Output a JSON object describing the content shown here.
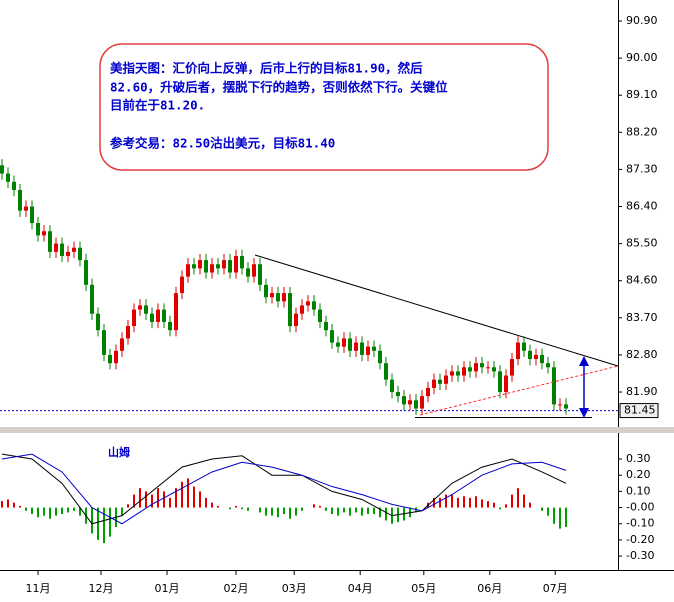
{
  "chart_data": [
    {
      "type": "candlestick",
      "annotation": [
        "美指天图：汇价向上反弹，后市上行的目标81.90，然后",
        "82.60，升破后者，摆脱下行的趋势，否则依然下行。关键位",
        "目前在于81.20.",
        "参考交易：82.50沽出美元，目标81.40"
      ],
      "open": [
        87.4,
        87.2,
        87.0,
        86.8,
        86.3,
        86.4,
        86.0,
        85.7,
        85.8,
        85.3,
        85.5,
        85.2,
        85.3,
        85.4,
        85.1,
        84.5,
        83.8,
        83.4,
        82.8,
        82.6,
        82.9,
        83.2,
        83.5,
        83.9,
        84.0,
        83.8,
        83.6,
        83.9,
        83.6,
        83.4,
        84.3,
        84.7,
        85.0,
        84.9,
        85.1,
        84.8,
        85.0,
        84.9,
        85.1,
        84.8,
        85.2,
        84.9,
        84.7,
        85.0,
        84.5,
        84.2,
        84.3,
        84.1,
        84.3,
        83.5,
        83.8,
        84.0,
        84.1,
        83.9,
        83.6,
        83.4,
        83.1,
        83.0,
        83.2,
        82.9,
        83.1,
        82.8,
        83.0,
        82.9,
        82.6,
        82.2,
        81.9,
        81.8,
        81.6,
        81.7,
        81.5,
        81.8,
        82.0,
        82.2,
        82.1,
        82.3,
        82.4,
        82.3,
        82.5,
        82.4,
        82.6,
        82.5,
        82.5,
        82.4,
        81.9,
        82.3,
        82.7,
        83.1,
        82.9,
        82.7,
        82.8,
        82.6,
        82.5,
        81.6,
        81.6
      ],
      "high": [
        87.55,
        87.35,
        87.15,
        86.95,
        86.55,
        86.55,
        86.15,
        85.95,
        85.95,
        85.65,
        85.65,
        85.45,
        85.55,
        85.55,
        85.25,
        84.65,
        83.95,
        83.55,
        82.95,
        83.05,
        83.35,
        83.65,
        84.05,
        84.15,
        84.15,
        83.95,
        84.05,
        84.05,
        83.75,
        84.45,
        84.85,
        85.15,
        85.15,
        85.25,
        85.25,
        85.15,
        85.15,
        85.25,
        85.25,
        85.35,
        85.35,
        85.05,
        85.15,
        85.15,
        84.65,
        84.45,
        84.45,
        84.45,
        84.45,
        83.95,
        84.15,
        84.25,
        84.25,
        84.05,
        83.75,
        83.55,
        83.25,
        83.35,
        83.35,
        83.25,
        83.25,
        83.15,
        83.15,
        83.05,
        82.75,
        82.35,
        82.05,
        81.95,
        81.85,
        81.85,
        81.95,
        82.15,
        82.35,
        82.35,
        82.45,
        82.55,
        82.55,
        82.65,
        82.65,
        82.75,
        82.75,
        82.65,
        82.65,
        82.55,
        82.45,
        82.85,
        83.25,
        83.25,
        83.05,
        82.95,
        82.95,
        82.75,
        82.65,
        81.75,
        81.75
      ],
      "low": [
        87.05,
        86.85,
        86.65,
        86.15,
        86.15,
        85.85,
        85.55,
        85.55,
        85.15,
        85.15,
        85.05,
        85.05,
        85.15,
        84.95,
        84.35,
        83.65,
        83.25,
        82.65,
        82.45,
        82.45,
        82.75,
        83.05,
        83.35,
        83.75,
        83.65,
        83.45,
        83.45,
        83.45,
        83.25,
        83.25,
        84.15,
        84.55,
        84.75,
        84.75,
        84.65,
        84.65,
        84.75,
        84.75,
        84.65,
        84.65,
        84.75,
        84.55,
        84.55,
        84.35,
        84.05,
        84.05,
        83.95,
        83.95,
        83.35,
        83.35,
        83.65,
        83.85,
        83.75,
        83.45,
        83.25,
        82.95,
        82.85,
        82.85,
        82.75,
        82.75,
        82.65,
        82.65,
        82.75,
        82.45,
        82.05,
        81.75,
        81.65,
        81.45,
        81.45,
        81.35,
        81.35,
        81.65,
        81.85,
        81.95,
        81.95,
        82.15,
        82.15,
        82.15,
        82.25,
        82.25,
        82.35,
        82.35,
        82.25,
        81.75,
        81.75,
        82.15,
        82.55,
        82.75,
        82.55,
        82.55,
        82.45,
        82.35,
        81.45,
        81.45,
        81.35
      ],
      "close": [
        87.2,
        87.0,
        86.8,
        86.3,
        86.4,
        86.0,
        85.7,
        85.8,
        85.3,
        85.5,
        85.2,
        85.3,
        85.4,
        85.1,
        84.5,
        83.8,
        83.4,
        82.8,
        82.6,
        82.9,
        83.2,
        83.5,
        83.9,
        84.0,
        83.8,
        83.6,
        83.9,
        83.6,
        83.4,
        84.3,
        84.7,
        85.0,
        84.9,
        85.1,
        84.8,
        85.0,
        84.9,
        85.1,
        84.8,
        85.2,
        84.9,
        84.7,
        85.0,
        84.5,
        84.2,
        84.3,
        84.1,
        84.3,
        83.5,
        83.8,
        84.0,
        84.1,
        83.9,
        83.6,
        83.4,
        83.1,
        83.0,
        83.2,
        82.9,
        83.1,
        82.8,
        83.0,
        82.9,
        82.6,
        82.2,
        81.9,
        81.8,
        81.6,
        81.7,
        81.5,
        81.8,
        82.0,
        82.2,
        82.1,
        82.3,
        82.4,
        82.3,
        82.5,
        82.4,
        82.6,
        82.5,
        82.5,
        82.4,
        81.9,
        82.3,
        82.7,
        83.1,
        82.9,
        82.7,
        82.8,
        82.6,
        82.5,
        81.6,
        81.6,
        81.5
      ],
      "up_color": "#e00000",
      "down_color": "#008000",
      "ylim": [
        81.1,
        91.41
      ],
      "yticks": [
        {
          "value": 90.9,
          "label": "90.90"
        },
        {
          "value": 90.0,
          "label": "90.00"
        },
        {
          "value": 89.1,
          "label": "89.10"
        },
        {
          "value": 88.2,
          "label": "88.20"
        },
        {
          "value": 87.3,
          "label": "87.30"
        },
        {
          "value": 86.4,
          "label": "86.40"
        },
        {
          "value": 85.5,
          "label": "85.50"
        },
        {
          "value": 84.6,
          "label": "84.60"
        },
        {
          "value": 83.7,
          "label": "83.70"
        },
        {
          "value": 82.8,
          "label": "82.80"
        },
        {
          "value": 81.9,
          "label": "81.90"
        }
      ],
      "last_price": {
        "value": 81.45,
        "label": "81.45"
      },
      "x_labels": [
        "11月",
        "12月",
        "01月",
        "02月",
        "03月",
        "04月",
        "05月",
        "06月",
        "07月"
      ]
    },
    {
      "type": "macd",
      "title": "山姆",
      "histogram": [
        0.04,
        0.05,
        0.03,
        0.01,
        -0.02,
        -0.04,
        -0.06,
        -0.05,
        -0.07,
        -0.05,
        -0.04,
        -0.03,
        -0.02,
        -0.05,
        -0.1,
        -0.16,
        -0.2,
        -0.22,
        -0.18,
        -0.12,
        -0.05,
        0.02,
        0.08,
        0.12,
        0.1,
        0.08,
        0.12,
        0.1,
        0.06,
        0.12,
        0.16,
        0.18,
        0.13,
        0.1,
        0.06,
        0.03,
        0.01,
        0.0,
        -0.01,
        0.01,
        -0.01,
        -0.02,
        0.0,
        -0.03,
        -0.05,
        -0.05,
        -0.06,
        -0.04,
        -0.07,
        -0.05,
        -0.02,
        0.0,
        0.02,
        0.01,
        -0.02,
        -0.04,
        -0.05,
        -0.03,
        -0.05,
        -0.03,
        -0.05,
        -0.04,
        -0.04,
        -0.06,
        -0.08,
        -0.1,
        -0.09,
        -0.08,
        -0.06,
        -0.03,
        0.0,
        0.03,
        0.06,
        0.06,
        0.08,
        0.08,
        0.06,
        0.07,
        0.06,
        0.07,
        0.05,
        0.04,
        0.03,
        -0.01,
        0.02,
        0.08,
        0.12,
        0.08,
        0.03,
        0.0,
        -0.02,
        -0.05,
        -0.1,
        -0.13,
        -0.12
      ],
      "x": [
        0,
        5,
        10,
        15,
        20,
        25,
        30,
        35,
        40,
        45,
        50,
        55,
        60,
        65,
        70,
        75,
        80,
        85,
        90,
        94
      ],
      "dif": {
        "color": "#000000",
        "values": [
          0.33,
          0.3,
          0.15,
          -0.1,
          -0.05,
          0.1,
          0.25,
          0.3,
          0.32,
          0.2,
          0.2,
          0.1,
          0.05,
          -0.05,
          -0.02,
          0.15,
          0.25,
          0.3,
          0.22,
          0.15
        ]
      },
      "dea": {
        "color": "#0000cc",
        "values": [
          0.3,
          0.33,
          0.22,
          0.0,
          -0.1,
          0.02,
          0.12,
          0.22,
          0.28,
          0.25,
          0.2,
          0.13,
          0.08,
          0.02,
          -0.02,
          0.08,
          0.2,
          0.27,
          0.28,
          0.23
        ]
      },
      "ylim": [
        -0.355,
        0.43
      ],
      "yticks": [
        {
          "value": 0.3,
          "label": "0.30"
        },
        {
          "value": 0.2,
          "label": "0.20"
        },
        {
          "value": 0.1,
          "label": "0.10"
        },
        {
          "value": 0,
          "label": "-0.00"
        },
        {
          "value": -0.1,
          "label": "-0.10"
        },
        {
          "value": -0.2,
          "label": "-0.20"
        },
        {
          "value": -0.3,
          "label": "-0.30"
        }
      ]
    }
  ]
}
